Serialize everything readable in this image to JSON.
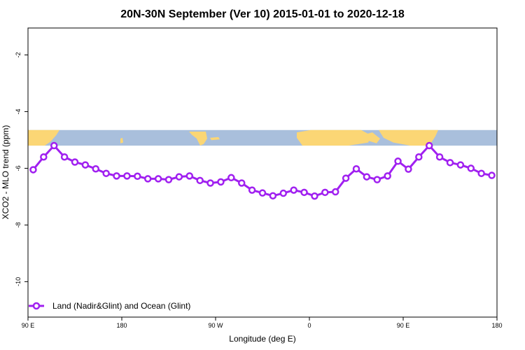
{
  "chart_data": {
    "type": "line",
    "title": "20N-30N September (Ver 10)   2015-01-01 to 2020-12-18",
    "xlabel": "Longitude (deg E)",
    "ylabel": "XCO2 - MLO trend (ppm)",
    "x_ticks": [
      {
        "value": 90,
        "label": "90 E"
      },
      {
        "value": 180,
        "label": "180"
      },
      {
        "value": 270,
        "label": "90 W"
      },
      {
        "value": 360,
        "label": "0"
      },
      {
        "value": 450,
        "label": "90 E"
      },
      {
        "value": 540,
        "label": "180"
      }
    ],
    "y_ticks": [
      {
        "value": -2,
        "label": "-2"
      },
      {
        "value": -4,
        "label": "-4"
      },
      {
        "value": -6,
        "label": "-6"
      },
      {
        "value": -8,
        "label": "-8"
      },
      {
        "value": -10,
        "label": "-10"
      }
    ],
    "xlim": [
      90,
      540
    ],
    "ylim": [
      -11.25,
      -1.05
    ],
    "map_band_ylim": [
      -4.65,
      -5.2
    ],
    "series": [
      {
        "name": "Land (Nadir&Glint) and Ocean (Glint)",
        "color": "#a020f0",
        "x": [
          95,
          105,
          115,
          125,
          135,
          145,
          155,
          165,
          175,
          185,
          195,
          205,
          215,
          225,
          235,
          245,
          255,
          265,
          275,
          285,
          295,
          305,
          315,
          325,
          335,
          345,
          355,
          365,
          375,
          385,
          395,
          405,
          415,
          425,
          435,
          445,
          455,
          465,
          475,
          485,
          495,
          505,
          515,
          525,
          535
        ],
        "y": [
          -6.05,
          -5.6,
          -5.2,
          -5.6,
          -5.78,
          -5.88,
          -6.02,
          -6.18,
          -6.27,
          -6.27,
          -6.28,
          -6.37,
          -6.37,
          -6.4,
          -6.3,
          -6.27,
          -6.43,
          -6.52,
          -6.48,
          -6.33,
          -6.52,
          -6.77,
          -6.87,
          -6.97,
          -6.88,
          -6.77,
          -6.85,
          -6.98,
          -6.85,
          -6.83,
          -6.35,
          -6.02,
          -6.3,
          -6.4,
          -6.27,
          -5.75,
          -6.03,
          -5.6,
          -5.2,
          -5.6,
          -5.8,
          -5.88,
          -6.0,
          -6.18,
          -6.25
        ]
      }
    ],
    "legend": {
      "position": "bottom-left"
    }
  }
}
